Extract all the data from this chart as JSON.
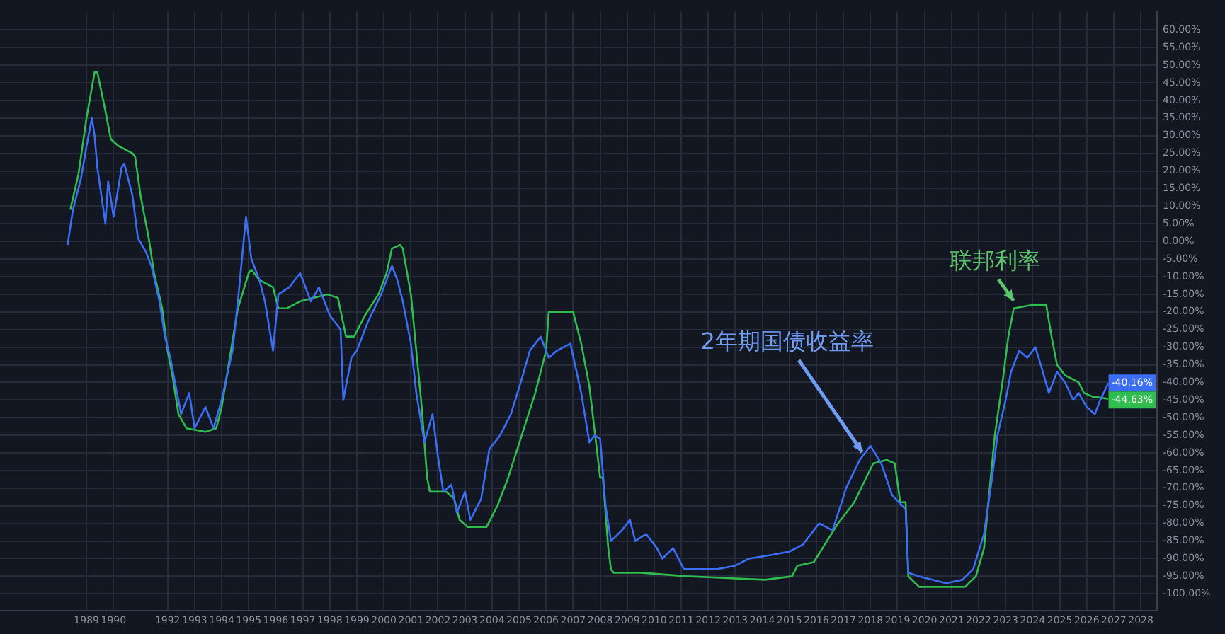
{
  "chart_data": {
    "type": "line",
    "series": [
      {
        "color": "#3b6ef5",
        "x": [
          1988.3,
          1988.5,
          1988.8,
          1989.0,
          1989.2,
          1989.3,
          1989.4,
          1989.7,
          1989.8,
          1990.0,
          1990.3,
          1990.4,
          1990.7,
          1990.9,
          1991.2,
          1991.4,
          1991.7,
          1991.9,
          1992.1,
          1992.3,
          1992.5,
          1992.8,
          1993.0,
          1993.4,
          1993.7,
          1994.0,
          1994.4,
          1994.6,
          1994.9,
          1995.1,
          1995.4,
          1995.6,
          1995.9,
          1996.1,
          1996.5,
          1996.9,
          1997.3,
          1997.6,
          1998.0,
          1998.4,
          1998.5,
          1998.8,
          1999.0,
          1999.4,
          1999.9,
          2000.3,
          2000.5,
          2000.7,
          2001.0,
          2001.2,
          2001.5,
          2001.8,
          2002.0,
          2002.2,
          2002.5,
          2002.7,
          2003.0,
          2003.2,
          2003.6,
          2003.9,
          2004.3,
          2004.7,
          2005.1,
          2005.4,
          2005.8,
          2006.1,
          2006.4,
          2006.9,
          2007.3,
          2007.6,
          2007.8,
          2008.0,
          2008.2,
          2008.4,
          2008.8,
          2009.1,
          2009.3,
          2009.7,
          2010.1,
          2010.3,
          2010.7,
          2011.1,
          2011.6,
          2012.3,
          2013.0,
          2013.5,
          2014.3,
          2015.0,
          2015.5,
          2016.1,
          2016.6,
          2017.1,
          2017.6,
          2018.0,
          2018.4,
          2018.8,
          2019.3,
          2019.4,
          2019.8,
          2020.8,
          2021.4,
          2021.8,
          2022.2,
          2022.5,
          2022.7,
          2023.0,
          2023.2,
          2023.5,
          2023.8,
          2024.1,
          2024.3,
          2024.6,
          2024.9,
          2025.2,
          2025.5,
          2025.7,
          2026.0,
          2026.3,
          2026.5,
          2026.8
        ],
        "values": [
          -1,
          9,
          18,
          27,
          35,
          30,
          21,
          5,
          17,
          7,
          21,
          22,
          13,
          1,
          -3,
          -7,
          -17,
          -27,
          -33,
          -41,
          -49,
          -43,
          -53,
          -47,
          -53,
          -45,
          -31,
          -17,
          7,
          -5,
          -11,
          -17,
          -31,
          -15,
          -13,
          -9,
          -17,
          -13,
          -21,
          -25,
          -45,
          -33,
          -31,
          -23,
          -15,
          -7,
          -11,
          -17,
          -29,
          -43,
          -57,
          -49,
          -61,
          -71,
          -69,
          -77,
          -71,
          -79,
          -73,
          -59,
          -55,
          -49,
          -39,
          -31,
          -27,
          -33,
          -31,
          -29,
          -43,
          -57,
          -55,
          -56,
          -75,
          -85,
          -82,
          -79,
          -85,
          -83,
          -87,
          -90,
          -87,
          -93,
          -93,
          -93,
          -92,
          -90,
          -89,
          -88,
          -86,
          -80,
          -82,
          -70,
          -62,
          -58,
          -63,
          -72,
          -76,
          -94,
          -95,
          -97,
          -96,
          -93,
          -83,
          -67,
          -55,
          -45,
          -37,
          -31,
          -33,
          -30,
          -35,
          -43,
          -37,
          -40,
          -45,
          -43,
          -47,
          -49,
          -45,
          -40.16
        ],
        "value_labels": [
          null,
          null,
          null,
          null,
          null,
          null,
          null,
          null,
          null,
          null,
          null,
          null,
          null,
          null,
          null,
          null,
          null,
          null,
          null,
          null,
          null,
          null,
          null,
          null,
          null,
          null,
          null,
          null,
          null,
          null,
          null,
          null,
          null,
          null,
          null,
          null,
          null,
          null,
          null,
          null,
          null,
          null,
          null,
          null,
          null,
          null,
          null,
          null,
          null,
          null,
          null,
          null,
          null,
          null,
          null,
          null,
          null,
          null,
          null,
          null,
          null,
          null,
          null,
          null,
          null,
          null,
          null,
          null,
          null,
          null,
          null,
          null,
          null,
          null,
          null,
          null,
          null,
          null,
          null,
          null,
          null,
          null,
          null,
          null,
          null,
          null,
          null,
          null,
          null,
          null,
          null,
          null,
          null,
          null,
          null,
          null,
          null,
          null,
          null,
          null,
          null,
          null,
          null,
          null,
          null,
          null,
          null,
          null,
          null,
          null,
          null,
          null,
          null,
          null,
          null,
          null,
          null,
          null,
          null,
          "-40.16%"
        ]
      },
      {
        "color": "#2ebd4e",
        "x": [
          1988.4,
          1988.7,
          1989.0,
          1989.3,
          1989.4,
          1989.7,
          1989.9,
          1990.2,
          1990.7,
          1990.8,
          1991.0,
          1991.3,
          1991.5,
          1991.8,
          1992.0,
          1992.2,
          1992.4,
          1992.7,
          1993.4,
          1993.8,
          1994.0,
          1994.3,
          1994.6,
          1995.0,
          1995.1,
          1995.4,
          1995.9,
          1996.1,
          1996.4,
          1996.9,
          1997.9,
          1998.3,
          1998.6,
          1998.9,
          1999.3,
          1999.8,
          2000.1,
          2000.3,
          2000.6,
          2000.7,
          2001.0,
          2001.2,
          2001.4,
          2001.6,
          2001.7,
          2002.3,
          2002.6,
          2002.8,
          2003.1,
          2003.8,
          2004.2,
          2004.6,
          2005.1,
          2005.6,
          2006.0,
          2006.1,
          2007.0,
          2007.3,
          2007.6,
          2008.0,
          2008.1,
          2008.3,
          2008.4,
          2008.5,
          2009.5,
          2011.2,
          2014.1,
          2015.1,
          2015.3,
          2015.9,
          2016.8,
          2017.4,
          2018.1,
          2018.6,
          2018.9,
          2019.1,
          2019.3,
          2019.4,
          2019.8,
          2021.5,
          2021.9,
          2022.2,
          2022.4,
          2022.6,
          2022.9,
          2023.1,
          2023.3,
          2024.0,
          2024.5,
          2024.7,
          2024.9,
          2025.2,
          2025.7,
          2025.9,
          2026.2,
          2026.8
        ],
        "values": [
          9,
          19,
          35,
          48,
          48,
          37,
          29,
          27,
          25,
          24,
          13,
          1,
          -9,
          -19,
          -31,
          -39,
          -49,
          -53,
          -54,
          -53,
          -47,
          -33,
          -19,
          -9,
          -8,
          -11,
          -13,
          -19,
          -19,
          -17,
          -15,
          -16,
          -27,
          -27,
          -21,
          -15,
          -9,
          -2,
          -1,
          -2,
          -15,
          -31,
          -47,
          -67,
          -71,
          -71,
          -73,
          -79,
          -81,
          -81,
          -75,
          -67,
          -55,
          -43,
          -31,
          -20,
          -20,
          -29,
          -41,
          -67,
          -67,
          -87,
          -93,
          -94,
          -94,
          -95,
          -96,
          -95,
          -92,
          -91,
          -80,
          -74,
          -63,
          -62,
          -63,
          -74,
          -74,
          -95,
          -98,
          -98,
          -95,
          -87,
          -71,
          -55,
          -39,
          -27,
          -19,
          -18,
          -18,
          -27,
          -35,
          -38,
          -40,
          -43,
          -44,
          -44.63
        ],
        "value_labels": [
          null,
          null,
          null,
          null,
          null,
          null,
          null,
          null,
          null,
          null,
          null,
          null,
          null,
          null,
          null,
          null,
          null,
          null,
          null,
          null,
          null,
          null,
          null,
          null,
          null,
          null,
          null,
          null,
          null,
          null,
          null,
          null,
          null,
          null,
          null,
          null,
          null,
          null,
          null,
          null,
          null,
          null,
          null,
          null,
          null,
          null,
          null,
          null,
          null,
          null,
          null,
          null,
          null,
          null,
          null,
          null,
          null,
          null,
          null,
          null,
          null,
          null,
          null,
          null,
          null,
          null,
          null,
          null,
          null,
          null,
          null,
          null,
          null,
          null,
          null,
          null,
          null,
          null,
          null,
          null,
          null,
          null,
          null,
          null,
          null,
          null,
          null,
          null,
          null,
          null,
          null,
          null,
          null,
          null,
          null,
          "-44.63%"
        ]
      }
    ],
    "annotations": [
      {
        "text": "2年期国债收益率",
        "x": 2017.8,
        "y": -61
      },
      {
        "text": "联邦利率",
        "x": 2023.4,
        "y": -18
      }
    ],
    "xlim": [
      1985.8,
      2028.6
    ],
    "xticks": [
      1989,
      1990,
      1992,
      1993,
      1994,
      1995,
      1996,
      1997,
      1998,
      1999,
      2000,
      2001,
      2002,
      2003,
      2004,
      2005,
      2006,
      2007,
      2008,
      2009,
      2010,
      2011,
      2012,
      2013,
      2014,
      2015,
      2016,
      2017,
      2018,
      2019,
      2020,
      2021,
      2022,
      2023,
      2024,
      2025,
      2026,
      2027,
      2028
    ],
    "ylim": [
      -104.8,
      65.2
    ],
    "yticks": [
      {
        "value": 60,
        "label": "60.00%"
      },
      {
        "value": 55,
        "label": "55.00%"
      },
      {
        "value": 50,
        "label": "50.00%"
      },
      {
        "value": 45,
        "label": "45.00%"
      },
      {
        "value": 40,
        "label": "40.00%"
      },
      {
        "value": 35,
        "label": "35.00%"
      },
      {
        "value": 30,
        "label": "30.00%"
      },
      {
        "value": 25,
        "label": "25.00%"
      },
      {
        "value": 20,
        "label": "20.00%"
      },
      {
        "value": 15,
        "label": "15.00%"
      },
      {
        "value": 10,
        "label": "10.00%"
      },
      {
        "value": 5,
        "label": "5.00%"
      },
      {
        "value": 0,
        "label": "0.00%"
      },
      {
        "value": -5,
        "label": "-5.00%"
      },
      {
        "value": -10,
        "label": "-10.00%"
      },
      {
        "value": -15,
        "label": "-15.00%"
      },
      {
        "value": -20,
        "label": "-20.00%"
      },
      {
        "value": -25,
        "label": "-25.00%"
      },
      {
        "value": -30,
        "label": "-30.00%"
      },
      {
        "value": -35,
        "label": "-35.00%"
      },
      {
        "value": -40,
        "label": "-40.00%"
      },
      {
        "value": -45,
        "label": "-45.00%"
      },
      {
        "value": -50,
        "label": "-50.00%"
      },
      {
        "value": -55,
        "label": "-55.00%"
      },
      {
        "value": -60,
        "label": "-60.00%"
      },
      {
        "value": -65,
        "label": "-65.00%"
      },
      {
        "value": -70,
        "label": "-70.00%"
      },
      {
        "value": -75,
        "label": "-75.00%"
      },
      {
        "value": -80,
        "label": "-80.00%"
      },
      {
        "value": -85,
        "label": "-85.00%"
      },
      {
        "value": -90,
        "label": "-90.00%"
      },
      {
        "value": -95,
        "label": "-95.00%"
      },
      {
        "value": -100,
        "label": "-100.00%"
      }
    ],
    "grid": true,
    "legend": false,
    "marker": "none",
    "line_style": "solid"
  }
}
